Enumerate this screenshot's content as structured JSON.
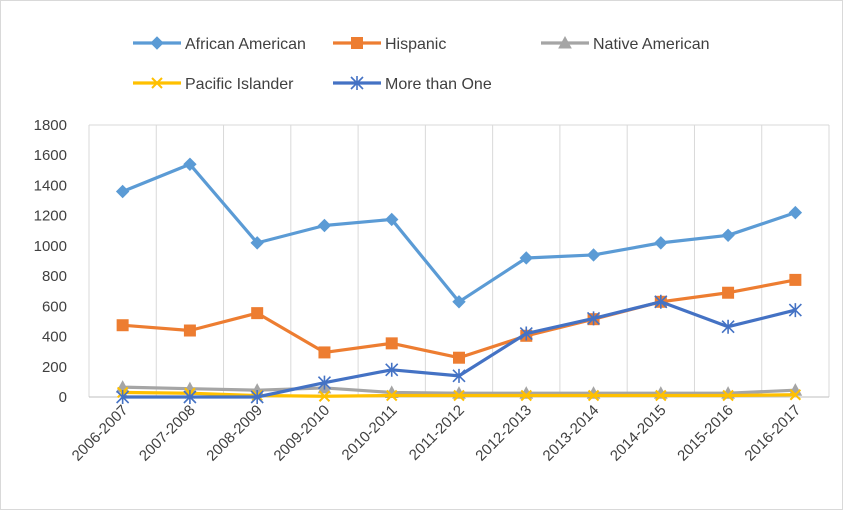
{
  "chart_data": {
    "type": "line",
    "title": "",
    "xlabel": "",
    "ylabel": "",
    "ylim": [
      0,
      1800
    ],
    "yticks": [
      0,
      200,
      400,
      600,
      800,
      1000,
      1200,
      1400,
      1600,
      1800
    ],
    "grid": "vertical",
    "legend_position": "top",
    "categories": [
      "2006-2007",
      "2007-2008",
      "2008-2009",
      "2009-2010",
      "2010-2011",
      "2011-2012",
      "2012-2013",
      "2013-2014",
      "2014-2015",
      "2015-2016",
      "2016-2017"
    ],
    "series": [
      {
        "name": "African American",
        "color": "#5b9bd5",
        "marker": "diamond",
        "values": [
          1360,
          1540,
          1020,
          1135,
          1175,
          630,
          920,
          940,
          1020,
          1070,
          1220
        ]
      },
      {
        "name": "Hispanic",
        "color": "#ed7d31",
        "marker": "square",
        "values": [
          475,
          440,
          555,
          295,
          355,
          260,
          405,
          515,
          630,
          690,
          775
        ]
      },
      {
        "name": "Native American",
        "color": "#a5a5a5",
        "marker": "triangle",
        "values": [
          65,
          55,
          45,
          60,
          30,
          25,
          25,
          25,
          25,
          25,
          45
        ]
      },
      {
        "name": "Pacific Islander",
        "color": "#ffc000",
        "marker": "x",
        "values": [
          30,
          25,
          10,
          5,
          10,
          10,
          10,
          10,
          10,
          10,
          15
        ]
      },
      {
        "name": "More than One",
        "color": "#4472c4",
        "marker": "star",
        "values": [
          0,
          0,
          0,
          95,
          180,
          140,
          420,
          520,
          630,
          465,
          575
        ]
      }
    ]
  }
}
